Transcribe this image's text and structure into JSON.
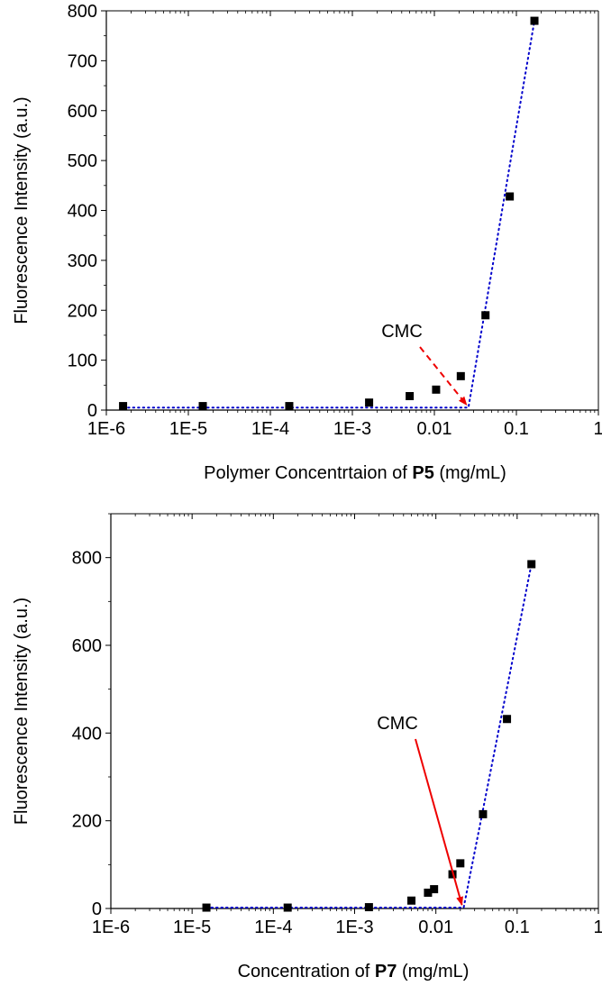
{
  "chart_data": [
    {
      "type": "scatter",
      "xscale": "log",
      "xlim": [
        1e-06,
        1
      ],
      "ylim": [
        0,
        800
      ],
      "x_ticks": [
        "1E-6",
        "1E-5",
        "1E-4",
        "1E-3",
        "0.01",
        "0.1",
        "1"
      ],
      "y_ticks": [
        "0",
        "100",
        "200",
        "300",
        "400",
        "500",
        "600",
        "700",
        "800"
      ],
      "xlabel_prefix": "Polymer Concentrtaion of ",
      "xlabel_bold": "P5",
      "xlabel_suffix": " (mg/mL)",
      "ylabel": "Fluorescence Intensity (a.u.)",
      "points": {
        "x": [
          1.6e-06,
          1.5e-05,
          0.00017,
          0.0016,
          0.005,
          0.0105,
          0.021,
          0.042,
          0.083,
          0.166
        ],
        "y": [
          8,
          8,
          8,
          15,
          28,
          41,
          68,
          190,
          428,
          780
        ]
      },
      "fit": {
        "style": "dotted",
        "color": "#0000cc",
        "x": [
          1.6e-06,
          0.026,
          0.166
        ],
        "y": [
          5,
          5,
          780
        ]
      },
      "annotation": {
        "text": "CMC",
        "arrow_style": "dashed",
        "color": "#ee0000",
        "target": [
          0.026,
          5
        ]
      },
      "grid": false,
      "legend": "none"
    },
    {
      "type": "scatter",
      "xscale": "log",
      "xlim": [
        1e-06,
        1
      ],
      "ylim": [
        0,
        900
      ],
      "x_ticks": [
        "1E-6",
        "1E-5",
        "1E-4",
        "1E-3",
        "0.01",
        "0.1",
        "1"
      ],
      "y_ticks": [
        "0",
        "200",
        "400",
        "600",
        "800"
      ],
      "xlabel_prefix": "Concentration of ",
      "xlabel_bold": "P7",
      "xlabel_suffix": " (mg/mL)",
      "ylabel": "Fluorescence Intensity (a.u.)",
      "points": {
        "x": [
          1.5e-05,
          0.00015,
          0.0015,
          0.005,
          0.008,
          0.0095,
          0.016,
          0.02,
          0.038,
          0.075,
          0.15
        ],
        "y": [
          2,
          2,
          3,
          18,
          36,
          44,
          78,
          103,
          215,
          432,
          785
        ]
      },
      "fit": {
        "style": "dotted",
        "color": "#0000cc",
        "x": [
          1.5e-05,
          0.022,
          0.15
        ],
        "y": [
          2,
          2,
          785
        ]
      },
      "annotation": {
        "text": "CMC",
        "arrow_style": "solid",
        "color": "#ee0000",
        "target": [
          0.022,
          2
        ]
      },
      "grid": false,
      "legend": "none"
    }
  ]
}
